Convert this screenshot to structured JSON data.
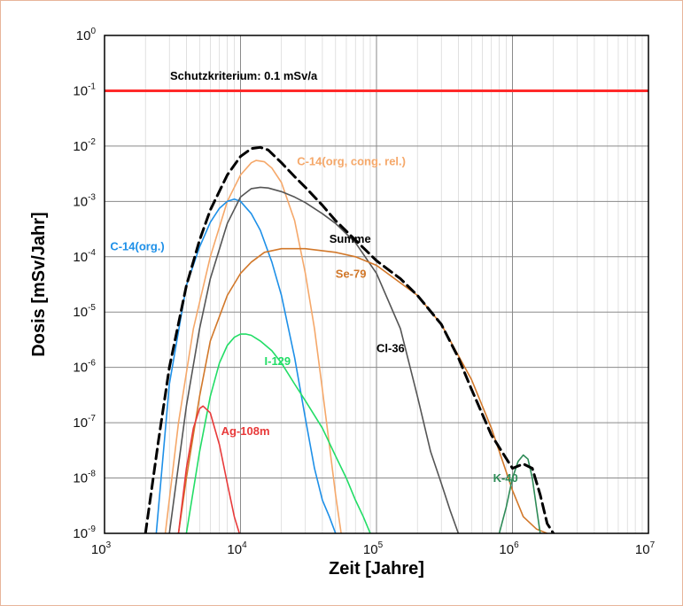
{
  "chart_data": {
    "type": "line",
    "xscale": "log",
    "yscale": "log",
    "xlim": [
      1000,
      10000000
    ],
    "ylim": [
      1e-09,
      1
    ],
    "xlabel": "Zeit [Jahre]",
    "ylabel": "Dosis [mSv/Jahr]",
    "grid": true,
    "x_ticks": [
      {
        "base": "10",
        "exp": "3",
        "value": 1000
      },
      {
        "base": "10",
        "exp": "4",
        "value": 10000
      },
      {
        "base": "10",
        "exp": "5",
        "value": 100000
      },
      {
        "base": "10",
        "exp": "6",
        "value": 1000000
      },
      {
        "base": "10",
        "exp": "7",
        "value": 10000000
      }
    ],
    "y_ticks": [
      {
        "base": "10",
        "exp": "0",
        "value": 1
      },
      {
        "base": "10",
        "exp": "-1",
        "value": 0.1
      },
      {
        "base": "10",
        "exp": "-2",
        "value": 0.01
      },
      {
        "base": "10",
        "exp": "-3",
        "value": 0.001
      },
      {
        "base": "10",
        "exp": "-4",
        "value": 0.0001
      },
      {
        "base": "10",
        "exp": "-5",
        "value": 1e-05
      },
      {
        "base": "10",
        "exp": "-6",
        "value": 1e-06
      },
      {
        "base": "10",
        "exp": "-7",
        "value": 1e-07
      },
      {
        "base": "10",
        "exp": "-8",
        "value": 1e-08
      },
      {
        "base": "10",
        "exp": "-9",
        "value": 1e-09
      }
    ],
    "reference_line": {
      "name": "Schutzkriterium: 0.1 mSv/a",
      "y": 0.1,
      "color": "#ff2a2a"
    },
    "series": [
      {
        "name": "Summe",
        "color": "#000000",
        "dash": true,
        "label_x": 45000,
        "label_y": 0.00018,
        "x": [
          2000,
          2500,
          3000,
          4000,
          5000,
          6000,
          8000,
          10000,
          12000,
          14000,
          16000,
          20000,
          25000,
          30000,
          40000,
          50000,
          70000,
          100000,
          150000,
          200000,
          300000,
          400000,
          500000,
          700000,
          1000000,
          1200000,
          1400000,
          1600000,
          1800000,
          2000000
        ],
        "y": [
          1e-09,
          5e-08,
          1e-06,
          3e-05,
          0.0002,
          0.0007,
          0.003,
          0.0065,
          0.009,
          0.0095,
          0.0085,
          0.005,
          0.0028,
          0.0018,
          0.00085,
          0.00045,
          0.0002,
          8.5e-05,
          4e-05,
          2e-05,
          6e-06,
          1.5e-06,
          4e-07,
          6e-08,
          1.5e-08,
          1.8e-08,
          1.5e-08,
          5e-09,
          1.5e-09,
          1e-09
        ]
      },
      {
        "name": "C-14(org, cong. rel.)",
        "color": "#f5a86a",
        "dash": false,
        "label_x": 26000,
        "label_y": 0.0045,
        "x": [
          2800,
          3500,
          4500,
          6000,
          8000,
          10000,
          12000,
          13000,
          15000,
          17000,
          20000,
          25000,
          30000,
          35000,
          40000,
          45000,
          50000,
          55000
        ],
        "y": [
          1e-09,
          1e-07,
          5e-06,
          0.0001,
          0.001,
          0.003,
          0.005,
          0.0055,
          0.0052,
          0.004,
          0.0022,
          0.00045,
          5e-05,
          5e-06,
          4e-07,
          4e-08,
          5e-09,
          1e-09
        ]
      },
      {
        "name": "C-14(org.)",
        "color": "#1e90e8",
        "dash": false,
        "label_x": 1100,
        "label_y": 0.00013,
        "x": [
          2400,
          3000,
          4000,
          5000,
          6000,
          7000,
          8000,
          9000,
          10000,
          12000,
          14000,
          17000,
          20000,
          25000,
          30000,
          35000,
          40000,
          45000,
          50000
        ],
        "y": [
          1e-09,
          5e-07,
          3e-05,
          0.00015,
          0.00042,
          0.00075,
          0.001,
          0.0011,
          0.001,
          0.0006,
          0.0003,
          8e-05,
          2e-05,
          1.5e-06,
          1.2e-07,
          1.5e-08,
          4e-09,
          2e-09,
          1e-09
        ]
      },
      {
        "name": "Cl-36",
        "color": "#555555",
        "dash": false,
        "label_x": 100000,
        "label_y": 1.9e-06,
        "x": [
          3000,
          4000,
          5000,
          6000,
          8000,
          10000,
          12000,
          14000,
          16000,
          20000,
          25000,
          30000,
          40000,
          50000,
          70000,
          100000,
          150000,
          200000,
          250000,
          300000,
          350000,
          400000
        ],
        "y": [
          1e-09,
          2e-07,
          5e-06,
          4e-05,
          0.0004,
          0.0012,
          0.0017,
          0.0018,
          0.00175,
          0.0015,
          0.0012,
          0.00095,
          0.0006,
          0.0004,
          0.00018,
          5e-05,
          5e-06,
          3e-07,
          3e-08,
          8e-09,
          2.5e-09,
          1e-09
        ]
      },
      {
        "name": "Se-79",
        "color": "#d2782a",
        "dash": false,
        "label_x": 50000,
        "label_y": 4.2e-05,
        "x": [
          3500,
          4000,
          5000,
          6000,
          8000,
          10000,
          12000,
          15000,
          20000,
          30000,
          50000,
          70000,
          100000,
          200000,
          300000,
          500000,
          700000,
          1000000,
          1200000,
          1500000,
          1800000
        ],
        "y": [
          1e-09,
          1e-08,
          3e-07,
          3e-06,
          2e-05,
          5e-05,
          8e-05,
          0.00012,
          0.00014,
          0.00014,
          0.00012,
          0.0001,
          7e-05,
          2e-05,
          6e-06,
          6e-07,
          8e-08,
          6e-09,
          2e-09,
          1.2e-09,
          1e-09
        ]
      },
      {
        "name": "I-129",
        "color": "#22dd66",
        "dash": false,
        "label_x": 15000,
        "label_y": 1.1e-06,
        "x": [
          4000,
          5000,
          6000,
          7000,
          8000,
          9000,
          10000,
          11000,
          12000,
          14000,
          17000,
          20000,
          25000,
          30000,
          40000,
          50000,
          60000,
          70000,
          80000,
          90000
        ],
        "y": [
          1e-09,
          3e-08,
          3e-07,
          1.2e-06,
          2.5e-06,
          3.5e-06,
          4e-06,
          4e-06,
          3.8e-06,
          3e-06,
          2e-06,
          1.2e-06,
          5e-07,
          2.5e-07,
          8e-08,
          2.5e-08,
          1e-08,
          4e-09,
          2e-09,
          1e-09
        ]
      },
      {
        "name": "Ag-108m",
        "color": "#e83a3a",
        "dash": false,
        "label_x": 7200,
        "label_y": 6e-08,
        "x": [
          3500,
          4000,
          4500,
          5000,
          5300,
          6000,
          7000,
          8000,
          9000,
          9800
        ],
        "y": [
          1e-09,
          1.5e-08,
          8e-08,
          1.8e-07,
          2e-07,
          1.5e-07,
          4e-08,
          8e-09,
          2e-09,
          1e-09
        ]
      },
      {
        "name": "K-40",
        "color": "#2e8b57",
        "dash": false,
        "label_x": 720000,
        "label_y": 8.5e-09,
        "x": [
          800000,
          900000,
          1000000,
          1100000,
          1200000,
          1300000,
          1400000,
          1500000,
          1600000
        ],
        "y": [
          1e-09,
          3e-09,
          1e-08,
          2e-08,
          2.6e-08,
          2.2e-08,
          1e-08,
          3e-09,
          1e-09
        ]
      }
    ]
  }
}
